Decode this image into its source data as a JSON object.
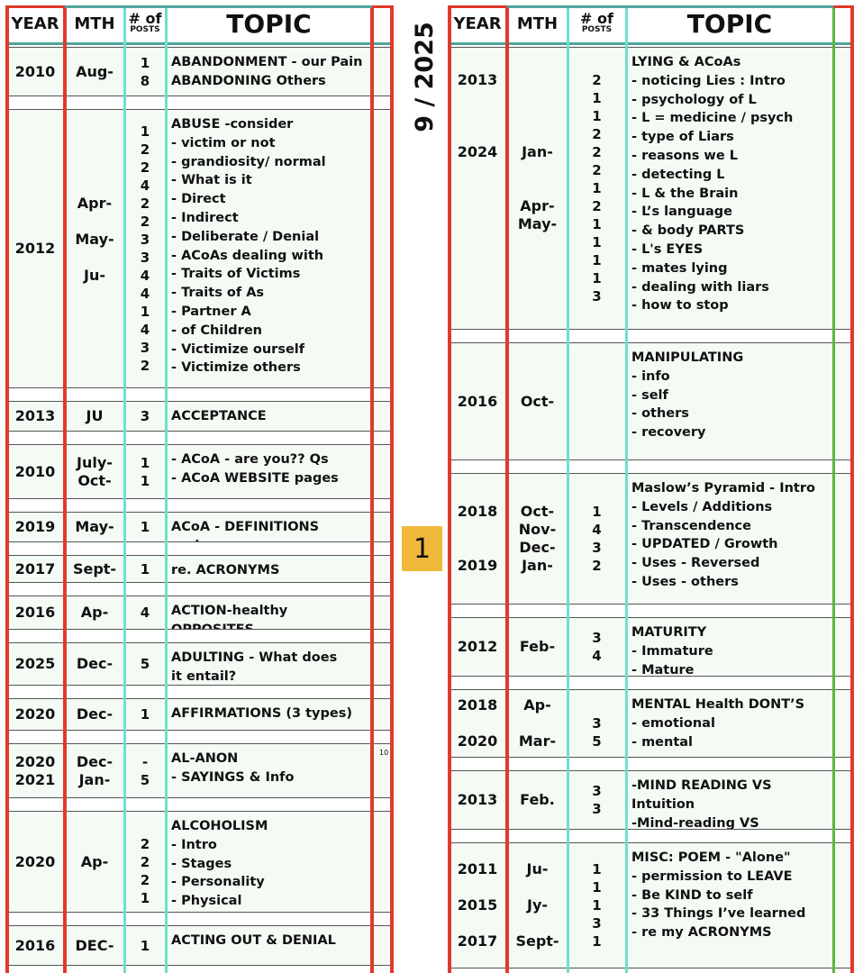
{
  "header": {
    "year": "YEAR",
    "mth": "MTH",
    "posts_top": "# of",
    "posts_bottom": "POSTS",
    "topic": "TOPIC"
  },
  "date_label": "9 / 2025",
  "page_number": "1",
  "colors": {
    "border_red": "#e03a2c",
    "column_teal": "#6ee0cc",
    "header_rule": "#4fa59c",
    "right_edge_green": "#5fb53a",
    "row_fill": "#f4fbf4",
    "page_badge": "#f0b93b"
  },
  "left_entries": [
    {
      "year": "2010",
      "mth": "Aug-",
      "posts": "1\n8",
      "topic": "ABANDONMENT - our Pain\nABANDONING Others"
    },
    {
      "year": "2012",
      "mth": "Apr-\n\nMay-\n\nJu-\n\n",
      "posts": "1\n2\n2\n4\n2\n2\n3\n3\n4\n4\n1\n4\n3\n2",
      "topic": "ABUSE -consider\n- victim or not\n- grandiosity/ normal\n- What is it\n- Direct\n- Indirect\n- Deliberate / Denial\n- ACoAs dealing with\n- Traits of Victims\n- Traits of As\n- Partner A\n- of Children\n- Victimize ourself\n- Victimize others"
    },
    {
      "year": "2013",
      "mth": "JU",
      "posts": "3",
      "topic": "ACCEPTANCE"
    },
    {
      "year": "2010",
      "mth": "July-\nOct-",
      "posts": "1\n1",
      "topic": "- ACoA - are you??  Qs\n- ACoA WEBSITE pages"
    },
    {
      "year": "2019",
      "mth": "May-",
      "posts": "1",
      "topic": "ACoA - DEFINITIONS review"
    },
    {
      "year": "2017",
      "mth": "Sept-",
      "posts": "1",
      "topic": "re. ACRONYMS"
    },
    {
      "year": "2016",
      "mth": "Ap-",
      "posts": "4",
      "topic": "ACTION-healthy OPPOSITES"
    },
    {
      "year": "2025",
      "mth": "Dec-",
      "posts": "5\n",
      "topic": "ADULTING - What does\n   it entail?"
    },
    {
      "year": "2020",
      "mth": "Dec-",
      "posts": "1",
      "topic": "AFFIRMATIONS (3 types)"
    },
    {
      "year": "2020\n2021",
      "mth": "Dec-\nJan-",
      "posts": "-\n5",
      "topic": "AL-ANON\n- SAYINGS & Info",
      "note": "10"
    },
    {
      "year": "2020",
      "mth": "Ap-",
      "posts": "\n2\n2\n2\n1",
      "topic": "ALCOHOLISM\n- Intro\n- Stages\n- Personality\n- Physical"
    },
    {
      "year": "2016",
      "mth": "DEC-",
      "posts": "1",
      "topic": "ACTING OUT & DENIAL"
    }
  ],
  "right_entries": [
    {
      "year": "2013\n\n\n\n2024\n\n\n\n\n\n\n\n\n",
      "mth": "\n\n\n\n\nJan-\n\n\nApr-\nMay-\n\n\n\n\n\n",
      "posts": "2\n1\n1\n2\n2\n2\n1\n2\n1\n1\n1\n1\n3",
      "topic": "LYING & ACoAs\n- noticing Lies : Intro\n- psychology of L\n- L = medicine / psych\n- type of Liars\n- reasons we L\n- detecting L\n- L & the Brain\n- L’s language\n- & body PARTS\n- L's EYES\n- mates lying\n- dealing with liars\n- how to stop"
    },
    {
      "year": "2016",
      "mth": "Oct-",
      "posts": "",
      "topic": "MANIPULATING\n- info\n- self\n- others\n- recovery"
    },
    {
      "year": "2018\n\n\n2019",
      "mth": "Oct-\nNov-\nDec-\nJan-",
      "posts": "1\n4\n3\n2",
      "topic": "Maslow’s Pyramid - Intro\n- Levels / Additions\n- Transcendence\n- UPDATED / Growth\n- Uses - Reversed\n- Uses - others"
    },
    {
      "year": "2012",
      "mth": "Feb-",
      "posts": "3\n4",
      "topic": "MATURITY\n- Immature\n- Mature"
    },
    {
      "year": "2018\n\n2020",
      "mth": "Ap-\n\nMar-",
      "posts": "\n3\n5",
      "topic": "MENTAL Health DONT’S\n- emotional\n- mental"
    },
    {
      "year": "2013",
      "mth": "Feb.",
      "posts": "3\n3",
      "topic": "-MIND READING VS Intuition\n-Mind-reading VS\nINTUITION"
    },
    {
      "year": "2011\n\n2015\n\n2017",
      "mth": "Ju-\n\nJy-\n\nSept-",
      "posts": "1\n1\n1\n3\n1",
      "topic": "MISC: POEM - \"Alone\"\n- permission to LEAVE\n- Be KIND to self\n- 33 Things I’ve learned\n- re my ACRONYMS"
    }
  ]
}
